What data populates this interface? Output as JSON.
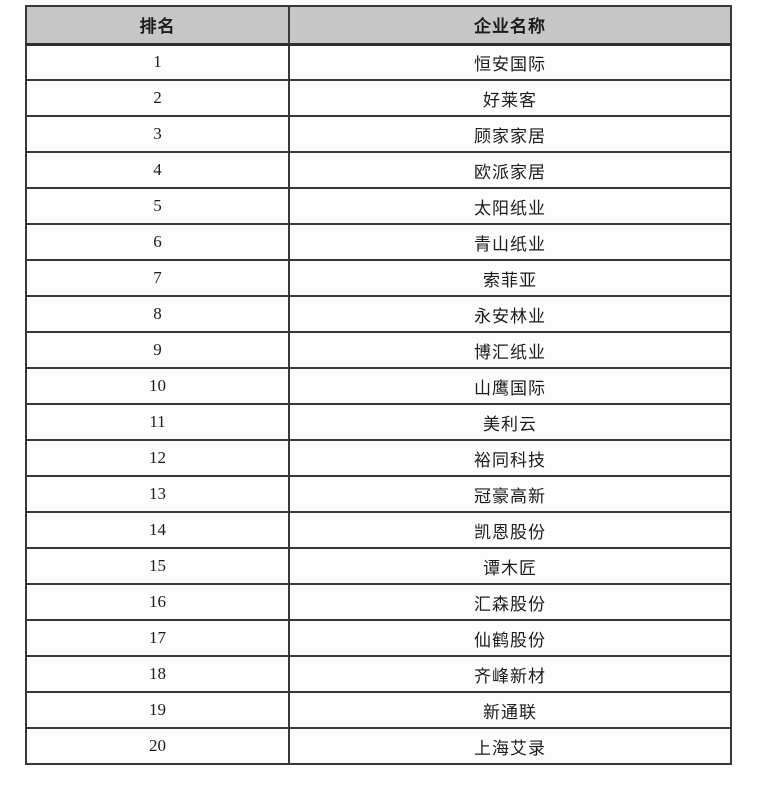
{
  "table": {
    "columns": [
      {
        "key": "rank",
        "label": "排名"
      },
      {
        "key": "name",
        "label": "企业名称"
      }
    ],
    "rows": [
      {
        "rank": "1",
        "name": "恒安国际"
      },
      {
        "rank": "2",
        "name": "好莱客"
      },
      {
        "rank": "3",
        "name": "顾家家居"
      },
      {
        "rank": "4",
        "name": "欧派家居"
      },
      {
        "rank": "5",
        "name": "太阳纸业"
      },
      {
        "rank": "6",
        "name": "青山纸业"
      },
      {
        "rank": "7",
        "name": "索菲亚"
      },
      {
        "rank": "8",
        "name": "永安林业"
      },
      {
        "rank": "9",
        "name": "博汇纸业"
      },
      {
        "rank": "10",
        "name": "山鹰国际"
      },
      {
        "rank": "11",
        "name": "美利云"
      },
      {
        "rank": "12",
        "name": "裕同科技"
      },
      {
        "rank": "13",
        "name": "冠豪高新"
      },
      {
        "rank": "14",
        "name": "凯恩股份"
      },
      {
        "rank": "15",
        "name": "谭木匠"
      },
      {
        "rank": "16",
        "name": "汇森股份"
      },
      {
        "rank": "17",
        "name": "仙鹤股份"
      },
      {
        "rank": "18",
        "name": "齐峰新材"
      },
      {
        "rank": "19",
        "name": "新通联"
      },
      {
        "rank": "20",
        "name": "上海艾录"
      }
    ]
  },
  "colors": {
    "header_bg": "#c6c6c6",
    "border": "#383838",
    "text": "#1c1c1c",
    "page_bg": "#fdfdfd"
  }
}
